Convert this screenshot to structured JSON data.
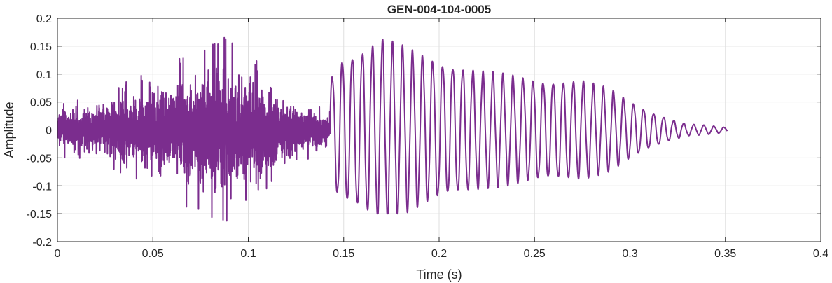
{
  "chart_data": {
    "type": "line",
    "title": "GEN-004-104-0005",
    "xlabel": "Time (s)",
    "ylabel": "Amplitude",
    "xlim": [
      0,
      0.4
    ],
    "ylim": [
      -0.2,
      0.2
    ],
    "grid": true,
    "line_color": "#7B2D8E",
    "x_ticks": [
      "0",
      "0.05",
      "0.1",
      "0.15",
      "0.2",
      "0.25",
      "0.3",
      "0.35",
      "0.4"
    ],
    "y_ticks": [
      "0.2",
      "0.15",
      "0.1",
      "0.05",
      "0",
      "-0.05",
      "-0.1",
      "-0.15",
      "-0.2"
    ],
    "series": [
      {
        "signal": "noisy burst then decaying oscillation",
        "time_range": [
          0,
          0.351
        ],
        "segments": [
          {
            "kind": "noise",
            "x_range": [
              0,
              0.143
            ],
            "envelope": [
              [
                0.0,
                0.045
              ],
              [
                0.02,
                0.06
              ],
              [
                0.04,
                0.085
              ],
              [
                0.06,
                0.11
              ],
              [
                0.075,
                0.15
              ],
              [
                0.085,
                0.16
              ],
              [
                0.1,
                0.12
              ],
              [
                0.11,
                0.1
              ],
              [
                0.125,
                0.06
              ],
              [
                0.135,
                0.045
              ],
              [
                0.143,
                0.03
              ]
            ],
            "max": 0.172,
            "min": -0.185
          },
          {
            "kind": "oscillation",
            "x_range": [
              0.143,
              0.351
            ],
            "frequency_hz": 190,
            "envelope": [
              [
                0.143,
                0.09
              ],
              [
                0.148,
                0.125
              ],
              [
                0.16,
                0.14
              ],
              [
                0.17,
                0.158
              ],
              [
                0.185,
                0.138
              ],
              [
                0.2,
                0.12
              ],
              [
                0.225,
                0.1
              ],
              [
                0.25,
                0.088
              ],
              [
                0.275,
                0.085
              ],
              [
                0.29,
                0.07
              ],
              [
                0.3,
                0.05
              ],
              [
                0.31,
                0.033
              ],
              [
                0.32,
                0.02
              ],
              [
                0.33,
                0.01
              ],
              [
                0.34,
                0.008
              ],
              [
                0.351,
                0.004
              ]
            ],
            "max": 0.162,
            "min": -0.15
          }
        ]
      }
    ]
  }
}
